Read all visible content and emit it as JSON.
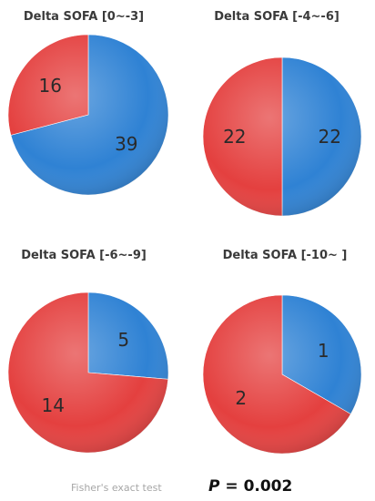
{
  "colors": {
    "blue": "#2f82d4",
    "red": "#e4403f"
  },
  "chart_data": [
    {
      "type": "pie",
      "title": "Delta SOFA [0~-3]",
      "slices": [
        {
          "value": 39,
          "color": "blue",
          "label": "39"
        },
        {
          "value": 16,
          "color": "red",
          "label": "16"
        }
      ]
    },
    {
      "type": "pie",
      "title": "Delta SOFA [-4~-6]",
      "slices": [
        {
          "value": 22,
          "color": "blue",
          "label": "22"
        },
        {
          "value": 22,
          "color": "red",
          "label": "22"
        }
      ]
    },
    {
      "type": "pie",
      "title": "Delta SOFA [-6~-9]",
      "slices": [
        {
          "value": 5,
          "color": "blue",
          "label": "5"
        },
        {
          "value": 14,
          "color": "red",
          "label": "14"
        }
      ]
    },
    {
      "type": "pie",
      "title": "Delta SOFA [-10~ ]",
      "slices": [
        {
          "value": 1,
          "color": "blue",
          "label": "1"
        },
        {
          "value": 2,
          "color": "red",
          "label": "2"
        }
      ]
    }
  ],
  "footer": {
    "test_label": "Fisher's exact test",
    "p_symbol": "P",
    "p_equals": "=",
    "p_value": "0.002"
  }
}
